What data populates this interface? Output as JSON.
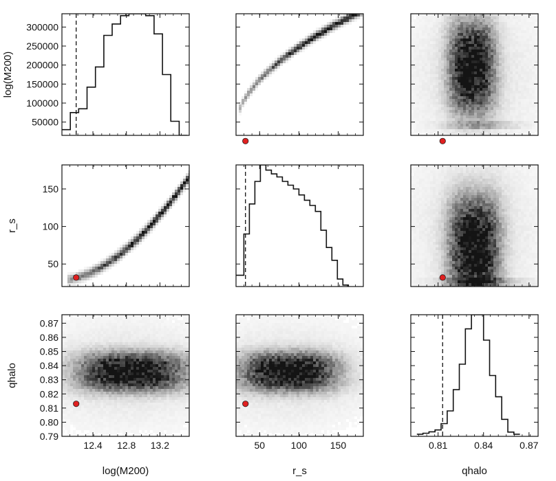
{
  "chart_data": {
    "type": "corner-plot",
    "parameters": [
      "log(M200)",
      "r_s",
      "qhalo"
    ],
    "true_point": {
      "log(M200)": 12.2,
      "r_s": 32,
      "qhalo": 0.813
    },
    "marker_color": "#e02020",
    "panels": {
      "row0": {
        "ylabel": "log(M200)",
        "yticks": [
          "300000",
          "250000",
          "200000",
          "150000",
          "100000",
          "50000"
        ],
        "ytick_values": [
          300000,
          250000,
          200000,
          150000,
          100000,
          50000
        ],
        "ylim": [
          15000,
          335000
        ]
      },
      "row1": {
        "ylabel": "r_s",
        "yticks": [
          "150",
          "100",
          "50"
        ],
        "ytick_values": [
          150,
          100,
          50
        ],
        "ylim": [
          20,
          182
        ]
      },
      "row2": {
        "ylabel": "qhalo",
        "yticks": [
          "0.87",
          "0.86",
          "0.85",
          "0.84",
          "0.83",
          "0.82",
          "0.81",
          "0.80",
          "0.79"
        ],
        "ytick_values": [
          0.87,
          0.86,
          0.85,
          0.84,
          0.83,
          0.82,
          0.81,
          0.8,
          0.79
        ],
        "ylim": [
          0.79,
          0.876
        ]
      },
      "col0": {
        "xlabel": "log(M200)",
        "xticks": [
          "12.4",
          "12.8",
          "13.2"
        ],
        "xtick_values": [
          12.4,
          12.8,
          13.2
        ],
        "xlim": [
          12.03,
          13.55
        ]
      },
      "col1": {
        "xlabel": "r_s",
        "xticks": [
          "50",
          "100",
          "150"
        ],
        "xtick_values": [
          50,
          100,
          150
        ],
        "xlim": [
          20,
          182
        ]
      },
      "col2": {
        "xlabel": "qhalo",
        "xticks": [
          "0.81",
          "0.84",
          "0.87"
        ],
        "xtick_values": [
          0.81,
          0.84,
          0.87
        ],
        "xlim": [
          0.792,
          0.876
        ]
      }
    },
    "histograms": {
      "log(M200)": {
        "edges": [
          12.03,
          12.13,
          12.23,
          12.33,
          12.43,
          12.53,
          12.63,
          12.73,
          12.83,
          12.93,
          13.03,
          13.13,
          13.23,
          13.33,
          13.43,
          13.53
        ],
        "counts": [
          30000,
          75000,
          85000,
          142000,
          195000,
          278000,
          308000,
          330000,
          335000,
          335000,
          330000,
          282000,
          175000,
          52000,
          15000
        ]
      },
      "r_s": {
        "edges": [
          20,
          30,
          37,
          44,
          51,
          58,
          65,
          72,
          79,
          86,
          93,
          100,
          107,
          114,
          121,
          128,
          135,
          142,
          149,
          156,
          163,
          170,
          177
        ],
        "counts": [
          35,
          90,
          130,
          160,
          182,
          175,
          170,
          166,
          160,
          155,
          150,
          142,
          135,
          128,
          120,
          95,
          72,
          55,
          30,
          22,
          18,
          15
        ]
      },
      "qhalo": {
        "edges": [
          0.796,
          0.8,
          0.804,
          0.808,
          0.812,
          0.816,
          0.82,
          0.824,
          0.828,
          0.832,
          0.836,
          0.84,
          0.844,
          0.848,
          0.852,
          0.856,
          0.86,
          0.864
        ],
        "counts": [
          0.7915,
          0.7922,
          0.7932,
          0.7945,
          0.799,
          0.808,
          0.823,
          0.841,
          0.866,
          0.876,
          0.876,
          0.858,
          0.833,
          0.818,
          0.802,
          0.793,
          0.7915
        ]
      }
    },
    "reference_lines": {
      "log(M200)": 12.2,
      "r_s": 32,
      "qhalo": 0.813
    }
  }
}
